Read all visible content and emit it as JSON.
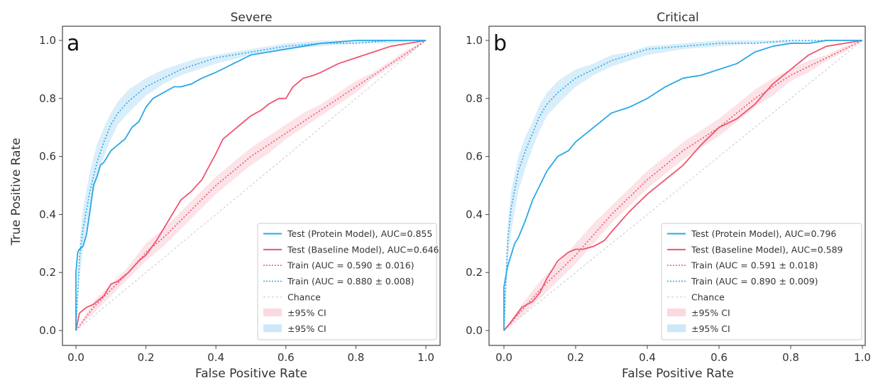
{
  "chart_data": [
    {
      "type": "line",
      "panel_letter": "a",
      "title": "Severe",
      "xlabel": "False Positive Rate",
      "ylabel": "True Positive Rate",
      "xlim": [
        0,
        1
      ],
      "ylim": [
        0,
        1
      ],
      "xticks": [
        "0.0",
        "0.2",
        "0.4",
        "0.6",
        "0.8",
        "1.0"
      ],
      "yticks": [
        "0.0",
        "0.2",
        "0.4",
        "0.6",
        "0.8",
        "1.0"
      ],
      "grid": false,
      "legend_position": "bottom-right",
      "colors": {
        "protein": "#29a8e6",
        "baseline": "#f0546e",
        "chance": "#c8c8c8",
        "ci_baseline": "#fbd9df",
        "ci_protein": "#cce8f8"
      },
      "series": [
        {
          "name": "Test (Protein Model), AUC=0.855",
          "style": "solid",
          "color": "#29a8e6",
          "x": [
            0,
            0,
            0.005,
            0.01,
            0.02,
            0.03,
            0.04,
            0.05,
            0.06,
            0.07,
            0.08,
            0.09,
            0.1,
            0.12,
            0.14,
            0.16,
            0.18,
            0.2,
            0.22,
            0.25,
            0.28,
            0.3,
            0.33,
            0.36,
            0.4,
            0.45,
            0.5,
            0.55,
            0.6,
            0.65,
            0.7,
            0.8,
            0.9,
            1.0
          ],
          "y": [
            0,
            0.2,
            0.27,
            0.28,
            0.29,
            0.33,
            0.41,
            0.5,
            0.53,
            0.57,
            0.58,
            0.6,
            0.62,
            0.64,
            0.66,
            0.7,
            0.72,
            0.77,
            0.8,
            0.82,
            0.84,
            0.84,
            0.85,
            0.87,
            0.89,
            0.92,
            0.95,
            0.96,
            0.97,
            0.98,
            0.99,
            1.0,
            1.0,
            1.0
          ]
        },
        {
          "name": "Test (Baseline Model), AUC=0.646",
          "style": "solid",
          "color": "#f0546e",
          "x": [
            0,
            0.01,
            0.03,
            0.05,
            0.08,
            0.1,
            0.12,
            0.15,
            0.18,
            0.2,
            0.23,
            0.25,
            0.28,
            0.3,
            0.33,
            0.36,
            0.4,
            0.42,
            0.45,
            0.48,
            0.5,
            0.53,
            0.55,
            0.58,
            0.6,
            0.62,
            0.65,
            0.68,
            0.7,
            0.75,
            0.8,
            0.85,
            0.9,
            0.95,
            1.0
          ],
          "y": [
            0,
            0.06,
            0.08,
            0.09,
            0.12,
            0.16,
            0.17,
            0.2,
            0.24,
            0.26,
            0.31,
            0.35,
            0.41,
            0.45,
            0.48,
            0.52,
            0.61,
            0.66,
            0.69,
            0.72,
            0.74,
            0.76,
            0.78,
            0.8,
            0.8,
            0.84,
            0.87,
            0.88,
            0.89,
            0.92,
            0.94,
            0.96,
            0.98,
            0.99,
            1.0
          ]
        },
        {
          "name": "Train (AUC = 0.590 ± 0.016)",
          "style": "dotted",
          "color": "#f0546e",
          "x": [
            0,
            0.05,
            0.1,
            0.15,
            0.2,
            0.25,
            0.3,
            0.35,
            0.4,
            0.45,
            0.5,
            0.55,
            0.6,
            0.65,
            0.7,
            0.75,
            0.8,
            0.85,
            0.9,
            0.95,
            1.0
          ],
          "y": [
            0,
            0.08,
            0.14,
            0.2,
            0.27,
            0.32,
            0.38,
            0.44,
            0.5,
            0.55,
            0.6,
            0.64,
            0.68,
            0.72,
            0.76,
            0.8,
            0.84,
            0.88,
            0.92,
            0.96,
            1.0
          ]
        },
        {
          "name": "Train (AUC = 0.880 ± 0.008)",
          "style": "dotted",
          "color": "#29a8e6",
          "x": [
            0,
            0.01,
            0.02,
            0.04,
            0.06,
            0.08,
            0.1,
            0.12,
            0.15,
            0.2,
            0.25,
            0.3,
            0.35,
            0.4,
            0.5,
            0.6,
            0.7,
            0.8,
            0.9,
            1.0
          ],
          "y": [
            0,
            0.25,
            0.35,
            0.48,
            0.58,
            0.65,
            0.71,
            0.75,
            0.79,
            0.84,
            0.87,
            0.9,
            0.92,
            0.94,
            0.96,
            0.98,
            0.99,
            0.99,
            1.0,
            1.0
          ]
        },
        {
          "name": "Chance",
          "style": "dashed",
          "color": "#c8c8c8",
          "x": [
            0,
            1
          ],
          "y": [
            0,
            1
          ]
        }
      ],
      "ci_bands": [
        {
          "name": "±95% CI",
          "color": "#fbd9df",
          "x": [
            0,
            0.05,
            0.1,
            0.15,
            0.2,
            0.25,
            0.3,
            0.35,
            0.4,
            0.45,
            0.5,
            0.55,
            0.6,
            0.65,
            0.7,
            0.75,
            0.8,
            0.85,
            0.9,
            0.95,
            1.0
          ],
          "lower": [
            0,
            0.06,
            0.12,
            0.18,
            0.24,
            0.29,
            0.35,
            0.41,
            0.47,
            0.52,
            0.57,
            0.61,
            0.66,
            0.7,
            0.74,
            0.78,
            0.82,
            0.87,
            0.91,
            0.95,
            1.0
          ],
          "upper": [
            0,
            0.1,
            0.16,
            0.22,
            0.3,
            0.35,
            0.41,
            0.47,
            0.53,
            0.58,
            0.63,
            0.67,
            0.71,
            0.75,
            0.78,
            0.82,
            0.86,
            0.89,
            0.93,
            0.97,
            1.0
          ]
        },
        {
          "name": "±95% CI",
          "color": "#cce8f8",
          "x": [
            0,
            0.01,
            0.02,
            0.04,
            0.06,
            0.08,
            0.1,
            0.12,
            0.15,
            0.2,
            0.25,
            0.3,
            0.35,
            0.4,
            0.5,
            0.6,
            0.7,
            0.8,
            0.9,
            1.0
          ],
          "lower": [
            0,
            0.18,
            0.28,
            0.42,
            0.53,
            0.6,
            0.66,
            0.71,
            0.75,
            0.81,
            0.85,
            0.88,
            0.9,
            0.92,
            0.95,
            0.97,
            0.98,
            0.99,
            0.99,
            1.0
          ],
          "upper": [
            0,
            0.3,
            0.42,
            0.55,
            0.64,
            0.7,
            0.75,
            0.79,
            0.83,
            0.87,
            0.9,
            0.92,
            0.94,
            0.95,
            0.97,
            0.99,
            1.0,
            1.0,
            1.0,
            1.0
          ]
        }
      ]
    },
    {
      "type": "line",
      "panel_letter": "b",
      "title": "Critical",
      "xlabel": "False Positive Rate",
      "ylabel": "",
      "xlim": [
        0,
        1
      ],
      "ylim": [
        0,
        1
      ],
      "xticks": [
        "0.0",
        "0.2",
        "0.4",
        "0.6",
        "0.8",
        "1.0"
      ],
      "yticks": [
        "0.0",
        "0.2",
        "0.4",
        "0.6",
        "0.8",
        "1.0"
      ],
      "grid": false,
      "legend_position": "bottom-right",
      "colors": {
        "protein": "#29a8e6",
        "baseline": "#f0546e",
        "chance": "#c8c8c8",
        "ci_baseline": "#fbd9df",
        "ci_protein": "#cce8f8"
      },
      "series": [
        {
          "name": "Test (Protein Model), AUC=0.796",
          "style": "solid",
          "color": "#29a8e6",
          "x": [
            0,
            0,
            0.01,
            0.02,
            0.03,
            0.04,
            0.05,
            0.06,
            0.08,
            0.1,
            0.12,
            0.15,
            0.18,
            0.2,
            0.25,
            0.3,
            0.35,
            0.4,
            0.45,
            0.5,
            0.55,
            0.6,
            0.65,
            0.7,
            0.75,
            0.8,
            0.85,
            0.9,
            0.95,
            1.0
          ],
          "y": [
            0,
            0.15,
            0.22,
            0.26,
            0.3,
            0.32,
            0.35,
            0.38,
            0.45,
            0.5,
            0.55,
            0.6,
            0.62,
            0.65,
            0.7,
            0.75,
            0.77,
            0.8,
            0.84,
            0.87,
            0.88,
            0.9,
            0.92,
            0.96,
            0.98,
            0.99,
            0.99,
            1.0,
            1.0,
            1.0
          ]
        },
        {
          "name": "Test (Baseline Model), AUC=0.589",
          "style": "solid",
          "color": "#f0546e",
          "x": [
            0,
            0.02,
            0.05,
            0.08,
            0.1,
            0.12,
            0.15,
            0.18,
            0.2,
            0.22,
            0.25,
            0.28,
            0.3,
            0.35,
            0.4,
            0.45,
            0.5,
            0.55,
            0.6,
            0.65,
            0.7,
            0.75,
            0.8,
            0.85,
            0.9,
            0.95,
            1.0
          ],
          "y": [
            0,
            0.03,
            0.08,
            0.1,
            0.13,
            0.18,
            0.24,
            0.27,
            0.28,
            0.28,
            0.29,
            0.31,
            0.34,
            0.41,
            0.47,
            0.52,
            0.57,
            0.64,
            0.7,
            0.73,
            0.78,
            0.85,
            0.9,
            0.95,
            0.98,
            0.99,
            1.0
          ]
        },
        {
          "name": "Train (AUC = 0.591 ± 0.018)",
          "style": "dotted",
          "color": "#f0546e",
          "x": [
            0,
            0.05,
            0.1,
            0.15,
            0.2,
            0.25,
            0.3,
            0.35,
            0.4,
            0.45,
            0.5,
            0.55,
            0.6,
            0.65,
            0.7,
            0.75,
            0.8,
            0.85,
            0.9,
            0.95,
            1.0
          ],
          "y": [
            0,
            0.07,
            0.14,
            0.2,
            0.26,
            0.33,
            0.4,
            0.46,
            0.52,
            0.57,
            0.62,
            0.66,
            0.7,
            0.75,
            0.8,
            0.84,
            0.88,
            0.91,
            0.94,
            0.97,
            1.0
          ]
        },
        {
          "name": "Train (AUC = 0.890 ± 0.009)",
          "style": "dotted",
          "color": "#29a8e6",
          "x": [
            0,
            0.01,
            0.02,
            0.04,
            0.06,
            0.08,
            0.1,
            0.12,
            0.15,
            0.2,
            0.25,
            0.3,
            0.35,
            0.4,
            0.5,
            0.6,
            0.7,
            0.8,
            0.9,
            1.0
          ],
          "y": [
            0,
            0.3,
            0.42,
            0.55,
            0.62,
            0.68,
            0.74,
            0.78,
            0.82,
            0.87,
            0.9,
            0.93,
            0.95,
            0.97,
            0.98,
            0.99,
            0.99,
            1.0,
            1.0,
            1.0
          ]
        },
        {
          "name": "Chance",
          "style": "dashed",
          "color": "#c8c8c8",
          "x": [
            0,
            1
          ],
          "y": [
            0,
            1
          ]
        }
      ],
      "ci_bands": [
        {
          "name": "±95% CI",
          "color": "#fbd9df",
          "x": [
            0,
            0.05,
            0.1,
            0.15,
            0.2,
            0.25,
            0.3,
            0.35,
            0.4,
            0.45,
            0.5,
            0.55,
            0.6,
            0.65,
            0.7,
            0.75,
            0.8,
            0.85,
            0.9,
            0.95,
            1.0
          ],
          "lower": [
            0,
            0.05,
            0.11,
            0.17,
            0.23,
            0.3,
            0.37,
            0.43,
            0.49,
            0.54,
            0.59,
            0.63,
            0.67,
            0.72,
            0.77,
            0.81,
            0.86,
            0.89,
            0.93,
            0.96,
            1.0
          ],
          "upper": [
            0,
            0.09,
            0.17,
            0.23,
            0.3,
            0.37,
            0.43,
            0.49,
            0.55,
            0.6,
            0.65,
            0.69,
            0.73,
            0.78,
            0.83,
            0.87,
            0.9,
            0.93,
            0.95,
            0.98,
            1.0
          ]
        },
        {
          "name": "±95% CI",
          "color": "#cce8f8",
          "x": [
            0,
            0.01,
            0.02,
            0.04,
            0.06,
            0.08,
            0.1,
            0.12,
            0.15,
            0.2,
            0.25,
            0.3,
            0.35,
            0.4,
            0.5,
            0.6,
            0.7,
            0.8,
            0.9,
            1.0
          ],
          "lower": [
            0,
            0.22,
            0.34,
            0.48,
            0.56,
            0.63,
            0.69,
            0.74,
            0.78,
            0.84,
            0.88,
            0.91,
            0.93,
            0.95,
            0.97,
            0.98,
            0.99,
            0.99,
            1.0,
            1.0
          ],
          "upper": [
            0,
            0.36,
            0.48,
            0.6,
            0.67,
            0.72,
            0.78,
            0.82,
            0.86,
            0.9,
            0.92,
            0.95,
            0.96,
            0.98,
            0.99,
            1.0,
            1.0,
            1.0,
            1.0,
            1.0
          ]
        }
      ]
    }
  ]
}
